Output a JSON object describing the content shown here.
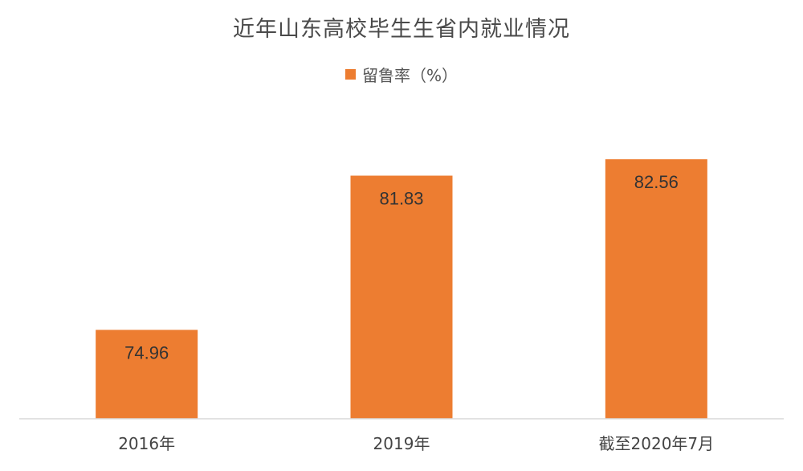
{
  "chart_data": {
    "type": "bar",
    "title": "近年山东高校毕生生省内就业情况",
    "categories": [
      "2016年",
      "2019年",
      "截至2020年7月"
    ],
    "series": [
      {
        "name": "留鲁率（%）",
        "values": [
          74.96,
          81.83,
          82.56
        ],
        "value_labels": [
          "74.96",
          "81.83",
          "82.56"
        ]
      }
    ],
    "legend_position": "top",
    "grid": false,
    "bar_color": "#ED7D31",
    "ylim": [
      71,
      85
    ],
    "xlabel": "",
    "ylabel": ""
  }
}
